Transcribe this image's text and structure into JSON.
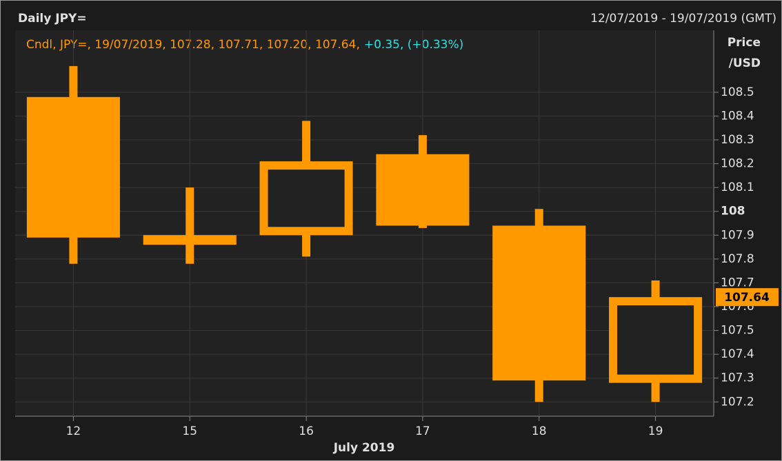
{
  "chart_data": {
    "type": "candlestick",
    "title": "Daily JPY=",
    "date_range": "12/07/2019 - 19/07/2019 (GMT)",
    "legend": {
      "label": "Cndl, JPY=, 19/07/2019, 107.28, 107.71, 107.20, 107.64,",
      "change": "+0.35, (+0.33%)"
    },
    "y_label": [
      "Price",
      "/USD"
    ],
    "x_label": "July 2019",
    "categories": [
      "12",
      "15",
      "16",
      "17",
      "18",
      "19"
    ],
    "series": [
      {
        "name": "JPY=",
        "color": "#ff9900",
        "open": [
          108.48,
          107.87,
          107.9,
          108.24,
          107.94,
          107.28
        ],
        "high": [
          108.61,
          108.1,
          108.38,
          108.32,
          108.01,
          107.71
        ],
        "low": [
          107.78,
          107.78,
          107.81,
          107.93,
          107.2,
          107.2
        ],
        "close": [
          107.89,
          107.89,
          108.21,
          107.94,
          107.29,
          107.64
        ]
      }
    ],
    "ylim": [
      107.14,
      108.76
    ],
    "yticks": [
      107.2,
      107.3,
      107.4,
      107.5,
      107.6,
      107.7,
      107.8,
      107.9,
      108,
      108.1,
      108.2,
      108.3,
      108.4,
      108.5
    ],
    "grid": true
  }
}
